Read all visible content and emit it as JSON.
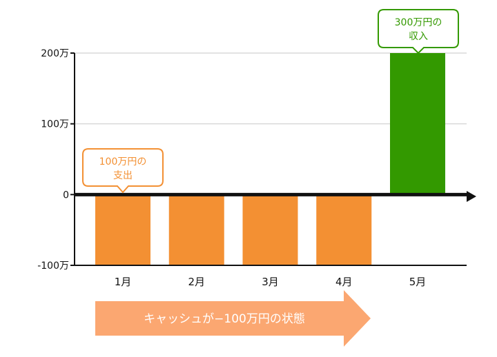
{
  "chart_data": {
    "type": "bar",
    "categories": [
      "1月",
      "2月",
      "3月",
      "4月",
      "5月"
    ],
    "values": [
      -100,
      -100,
      -100,
      -100,
      200
    ],
    "y_ticks": [
      "-100万",
      "0",
      "100万",
      "200万"
    ],
    "ylim": [
      -100,
      200
    ],
    "grid": true,
    "title": "",
    "xlabel": "",
    "ylabel": ""
  },
  "colors": {
    "expense": "#f39033",
    "income": "#339900",
    "grid": "#d9d9d9",
    "axis": "#111111",
    "banner": "#fba771"
  },
  "callouts": {
    "expense": {
      "line1": "100万円の",
      "line2": "支出"
    },
    "income": {
      "line1": "300万円の",
      "line2": "収入"
    }
  },
  "banner": {
    "text": "キャッシュが−100万円の状態"
  }
}
